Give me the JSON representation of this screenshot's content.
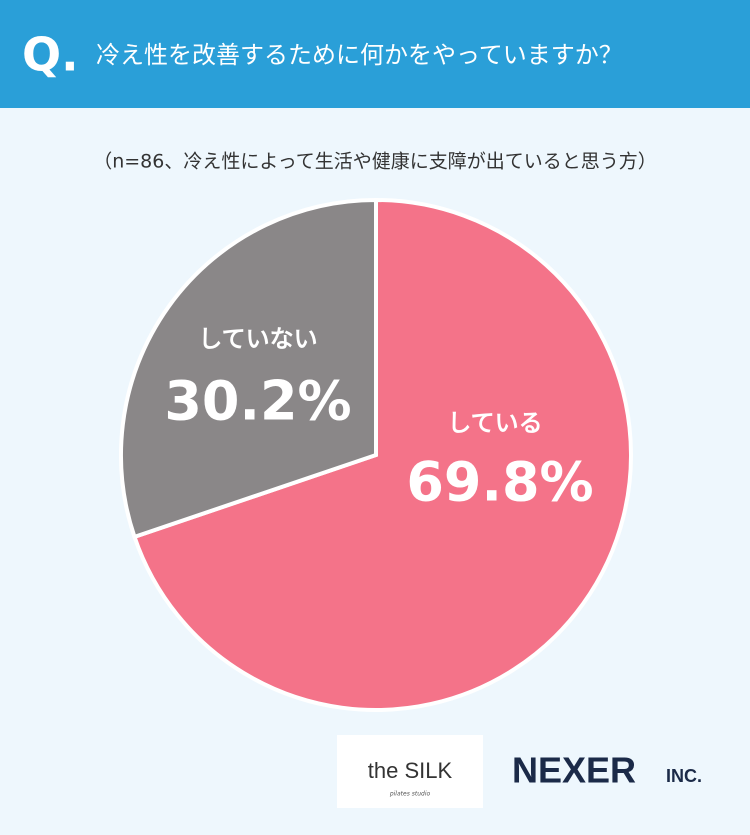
{
  "header_label": "Q.",
  "chart_data": {
    "type": "pie",
    "title": "冷え性を改善するために何かをやっていますか？",
    "subtitle": "（n=86、冷え性によって生活や健康に支障が出ていると思う方）",
    "categories": [
      "している",
      "していない"
    ],
    "values": [
      69.8,
      30.2
    ],
    "value_labels": [
      "69.8%",
      "30.2%"
    ],
    "colors": [
      "#f47389",
      "#8a8788"
    ]
  },
  "logos": {
    "silk": "the SILK",
    "silk_tagline": "pilates studio",
    "nexer": "NEXER",
    "nexer_suffix": "INC."
  }
}
